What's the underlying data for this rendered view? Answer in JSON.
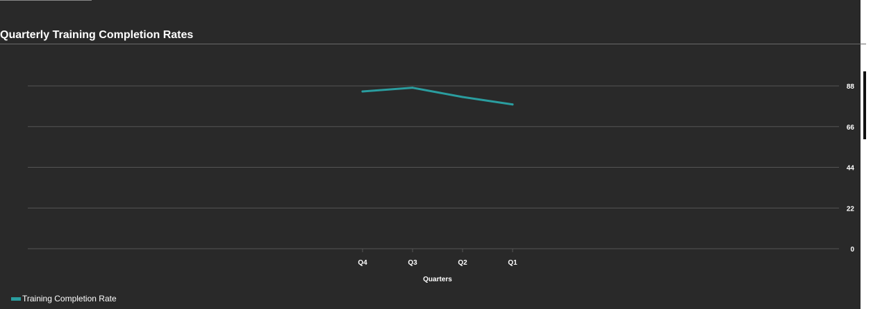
{
  "chart_data": {
    "type": "line",
    "title": "Quarterly Training Completion Rates",
    "xlabel": "Quarters",
    "ylabel": "",
    "categories": [
      "Q4",
      "Q3",
      "Q2",
      "Q1"
    ],
    "series": [
      {
        "name": "Training Completion Rate",
        "values": [
          85,
          87,
          82,
          78
        ]
      }
    ],
    "y_ticks": [
      0,
      22,
      44,
      66,
      88
    ],
    "ylim": [
      0,
      88
    ],
    "grid": true,
    "y_axis_side": "right",
    "legend_position": "bottom-left",
    "colors": {
      "series": "#2a9d9f",
      "grid": "#555555",
      "text": "#ffffff",
      "background": "#292929"
    }
  }
}
